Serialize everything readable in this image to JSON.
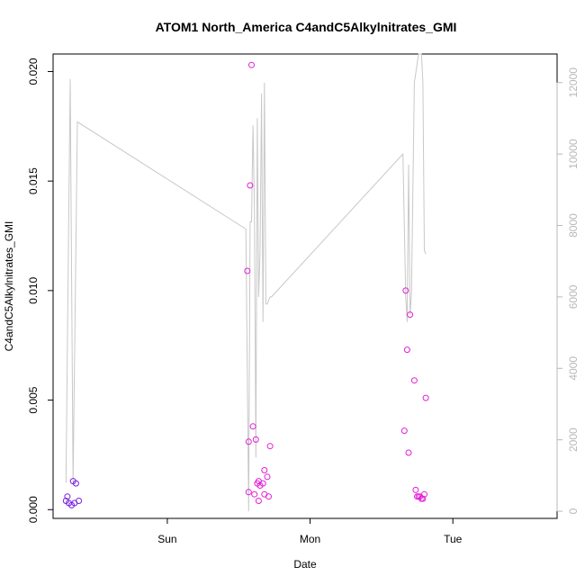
{
  "chart_data": {
    "type": "scatter",
    "title": "ATOM1 North_America C4andC5Alkylnitrates_GMI",
    "xlabel": "Date",
    "ylabel": "C4andC5Alkylnitrates_GMI",
    "x_ticks": [
      "Sun",
      "Mon",
      "Tue"
    ],
    "x_tick_values": [
      0.5,
      1.5,
      2.5
    ],
    "xlim": [
      -0.3,
      3.23
    ],
    "y_left_ticks": [
      "0.000",
      "0.005",
      "0.010",
      "0.015",
      "0.020"
    ],
    "y_left_tick_values": [
      0,
      0.005,
      0.01,
      0.015,
      0.02
    ],
    "ylim_left": [
      -0.0004,
      0.0208
    ],
    "y_right_ticks": [
      "0",
      "2000",
      "4000",
      "6000",
      "8000",
      "10000",
      "12000"
    ],
    "y_right_tick_values": [
      0,
      2000,
      4000,
      6000,
      8000,
      10000,
      12000
    ],
    "ylim_right": [
      -200,
      12800
    ],
    "grid": false,
    "series": [
      {
        "kind": "points",
        "axis": "left",
        "marker": "open-circle",
        "colors": {
          "early": "#7a1fe0",
          "late": "#e21fd6"
        },
        "points": [
          {
            "x": -0.21,
            "y": 0.0004,
            "c": "early"
          },
          {
            "x": -0.2,
            "y": 0.0006,
            "c": "early"
          },
          {
            "x": -0.19,
            "y": 0.0003,
            "c": "early"
          },
          {
            "x": -0.17,
            "y": 0.0002,
            "c": "early"
          },
          {
            "x": -0.16,
            "y": 0.0013,
            "c": "early"
          },
          {
            "x": -0.15,
            "y": 0.0003,
            "c": "early"
          },
          {
            "x": -0.14,
            "y": 0.0012,
            "c": "early"
          },
          {
            "x": -0.12,
            "y": 0.0004,
            "c": "early"
          },
          {
            "x": 1.06,
            "y": 0.0109,
            "c": "late"
          },
          {
            "x": 1.07,
            "y": 0.0031,
            "c": "late"
          },
          {
            "x": 1.07,
            "y": 0.0008,
            "c": "late"
          },
          {
            "x": 1.08,
            "y": 0.0148,
            "c": "late"
          },
          {
            "x": 1.09,
            "y": 0.0203,
            "c": "late"
          },
          {
            "x": 1.1,
            "y": 0.0038,
            "c": "late"
          },
          {
            "x": 1.11,
            "y": 0.0007,
            "c": "late"
          },
          {
            "x": 1.12,
            "y": 0.0032,
            "c": "late"
          },
          {
            "x": 1.13,
            "y": 0.0012,
            "c": "late"
          },
          {
            "x": 1.14,
            "y": 0.0013,
            "c": "late"
          },
          {
            "x": 1.14,
            "y": 0.0004,
            "c": "late"
          },
          {
            "x": 1.15,
            "y": 0.0011,
            "c": "late"
          },
          {
            "x": 1.17,
            "y": 0.0012,
            "c": "late"
          },
          {
            "x": 1.18,
            "y": 0.0007,
            "c": "late"
          },
          {
            "x": 1.18,
            "y": 0.0018,
            "c": "late"
          },
          {
            "x": 1.2,
            "y": 0.0015,
            "c": "late"
          },
          {
            "x": 1.21,
            "y": 0.0006,
            "c": "late"
          },
          {
            "x": 1.22,
            "y": 0.0029,
            "c": "late"
          },
          {
            "x": 2.16,
            "y": 0.0036,
            "c": "late"
          },
          {
            "x": 2.17,
            "y": 0.01,
            "c": "late"
          },
          {
            "x": 2.18,
            "y": 0.0073,
            "c": "late"
          },
          {
            "x": 2.19,
            "y": 0.0026,
            "c": "late"
          },
          {
            "x": 2.2,
            "y": 0.0089,
            "c": "late"
          },
          {
            "x": 2.23,
            "y": 0.0059,
            "c": "late"
          },
          {
            "x": 2.24,
            "y": 0.0009,
            "c": "late"
          },
          {
            "x": 2.25,
            "y": 0.0006,
            "c": "late"
          },
          {
            "x": 2.26,
            "y": 0.0006,
            "c": "late"
          },
          {
            "x": 2.27,
            "y": 0.0006,
            "c": "late"
          },
          {
            "x": 2.28,
            "y": 0.0005,
            "c": "late"
          },
          {
            "x": 2.29,
            "y": 0.0005,
            "c": "late"
          },
          {
            "x": 2.3,
            "y": 0.0007,
            "c": "late"
          },
          {
            "x": 2.31,
            "y": 0.0051,
            "c": "late"
          }
        ]
      },
      {
        "kind": "line",
        "axis": "right",
        "color": "#c8c8c8",
        "x": [
          -0.21,
          -0.18,
          -0.16,
          -0.13,
          1.05,
          1.07,
          1.08,
          1.09,
          1.1,
          1.11,
          1.12,
          1.13,
          1.14,
          1.15,
          1.16,
          1.17,
          1.18,
          1.19,
          1.2,
          1.21,
          1.22,
          1.23,
          2.15,
          2.17,
          2.18,
          2.19,
          2.2,
          2.21,
          2.23,
          2.26,
          2.28,
          2.29,
          2.3,
          2.31
        ],
        "y": [
          800,
          12100,
          800,
          10900,
          7900,
          0,
          8100,
          8100,
          10800,
          8500,
          1500,
          11000,
          6000,
          7300,
          11700,
          5300,
          12000,
          5800,
          5800,
          5900,
          6000,
          6000,
          10000,
          6000,
          5300,
          9700,
          5500,
          6100,
          12000,
          12800,
          12800,
          12000,
          7300,
          7200
        ]
      }
    ]
  }
}
